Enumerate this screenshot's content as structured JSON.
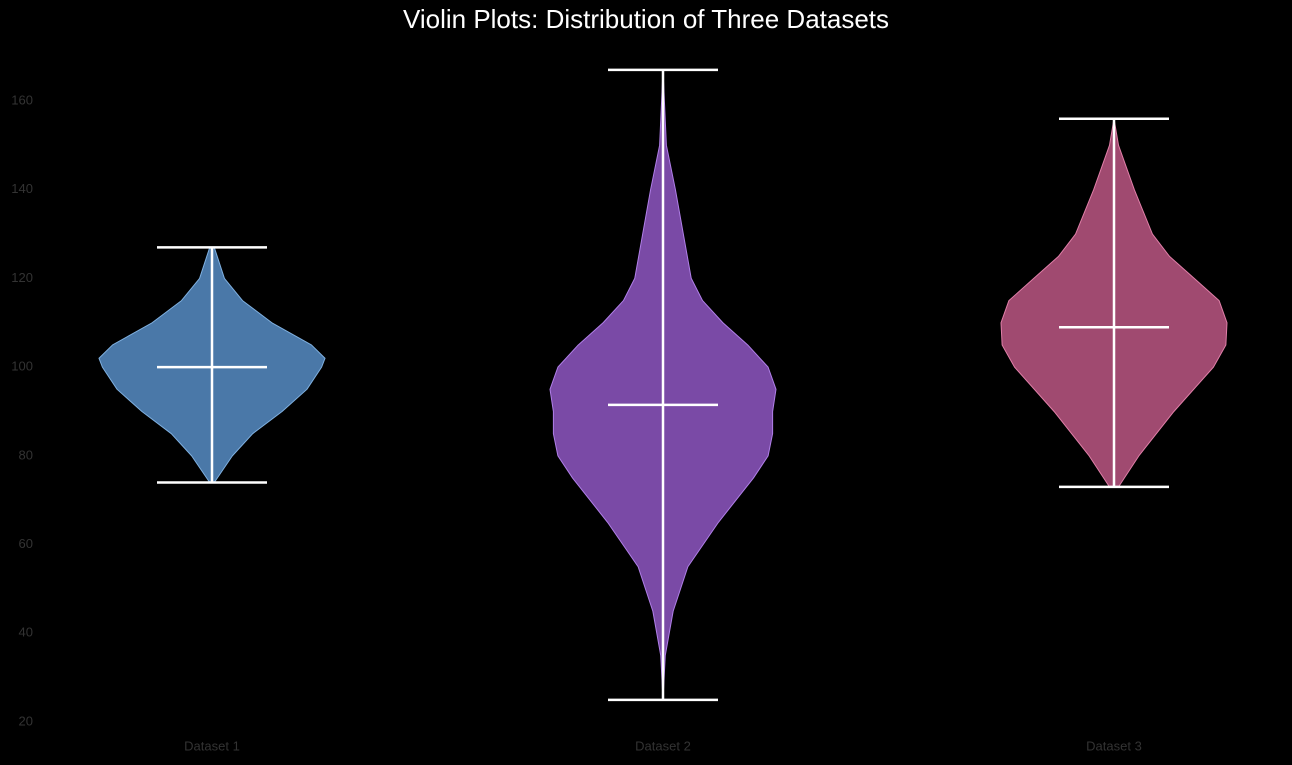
{
  "chart_data": {
    "type": "violin",
    "title": "Violin Plots: Distribution of Three Datasets",
    "categories": [
      "Dataset 1",
      "Dataset 2",
      "Dataset 3"
    ],
    "ylim": [
      18,
      170
    ],
    "yticks": [
      20,
      40,
      60,
      80,
      100,
      120,
      140,
      160
    ],
    "grid": false,
    "series": [
      {
        "name": "Dataset 1",
        "color": "#4a78a8",
        "edge": "#7fb0e0",
        "min": 74,
        "median": 100,
        "max": 127,
        "density": {
          "y": [
            74,
            80,
            85,
            90,
            95,
            100,
            102,
            105,
            110,
            115,
            120,
            127
          ],
          "width": [
            0.02,
            0.18,
            0.36,
            0.62,
            0.84,
            0.97,
            1.0,
            0.88,
            0.53,
            0.27,
            0.11,
            0.02
          ]
        }
      },
      {
        "name": "Dataset 2",
        "color": "#7a4aa6",
        "edge": "#b07fe8",
        "min": 25,
        "median": 91.5,
        "max": 167,
        "density": {
          "y": [
            25,
            35,
            45,
            55,
            65,
            75,
            80,
            85,
            90,
            95,
            100,
            105,
            110,
            115,
            120,
            130,
            140,
            150,
            167
          ],
          "width": [
            0.0,
            0.02,
            0.09,
            0.22,
            0.49,
            0.8,
            0.93,
            0.97,
            0.97,
            1.0,
            0.93,
            0.75,
            0.53,
            0.35,
            0.25,
            0.18,
            0.11,
            0.03,
            0.0
          ]
        }
      },
      {
        "name": "Dataset 3",
        "color": "#a04a70",
        "edge": "#e07fa8",
        "min": 73,
        "median": 109,
        "max": 156,
        "density": {
          "y": [
            73,
            80,
            90,
            100,
            105,
            110,
            115,
            120,
            125,
            130,
            140,
            150,
            156
          ],
          "width": [
            0.04,
            0.22,
            0.53,
            0.88,
            0.99,
            1.0,
            0.93,
            0.71,
            0.49,
            0.34,
            0.18,
            0.04,
            0.0
          ]
        }
      }
    ]
  }
}
